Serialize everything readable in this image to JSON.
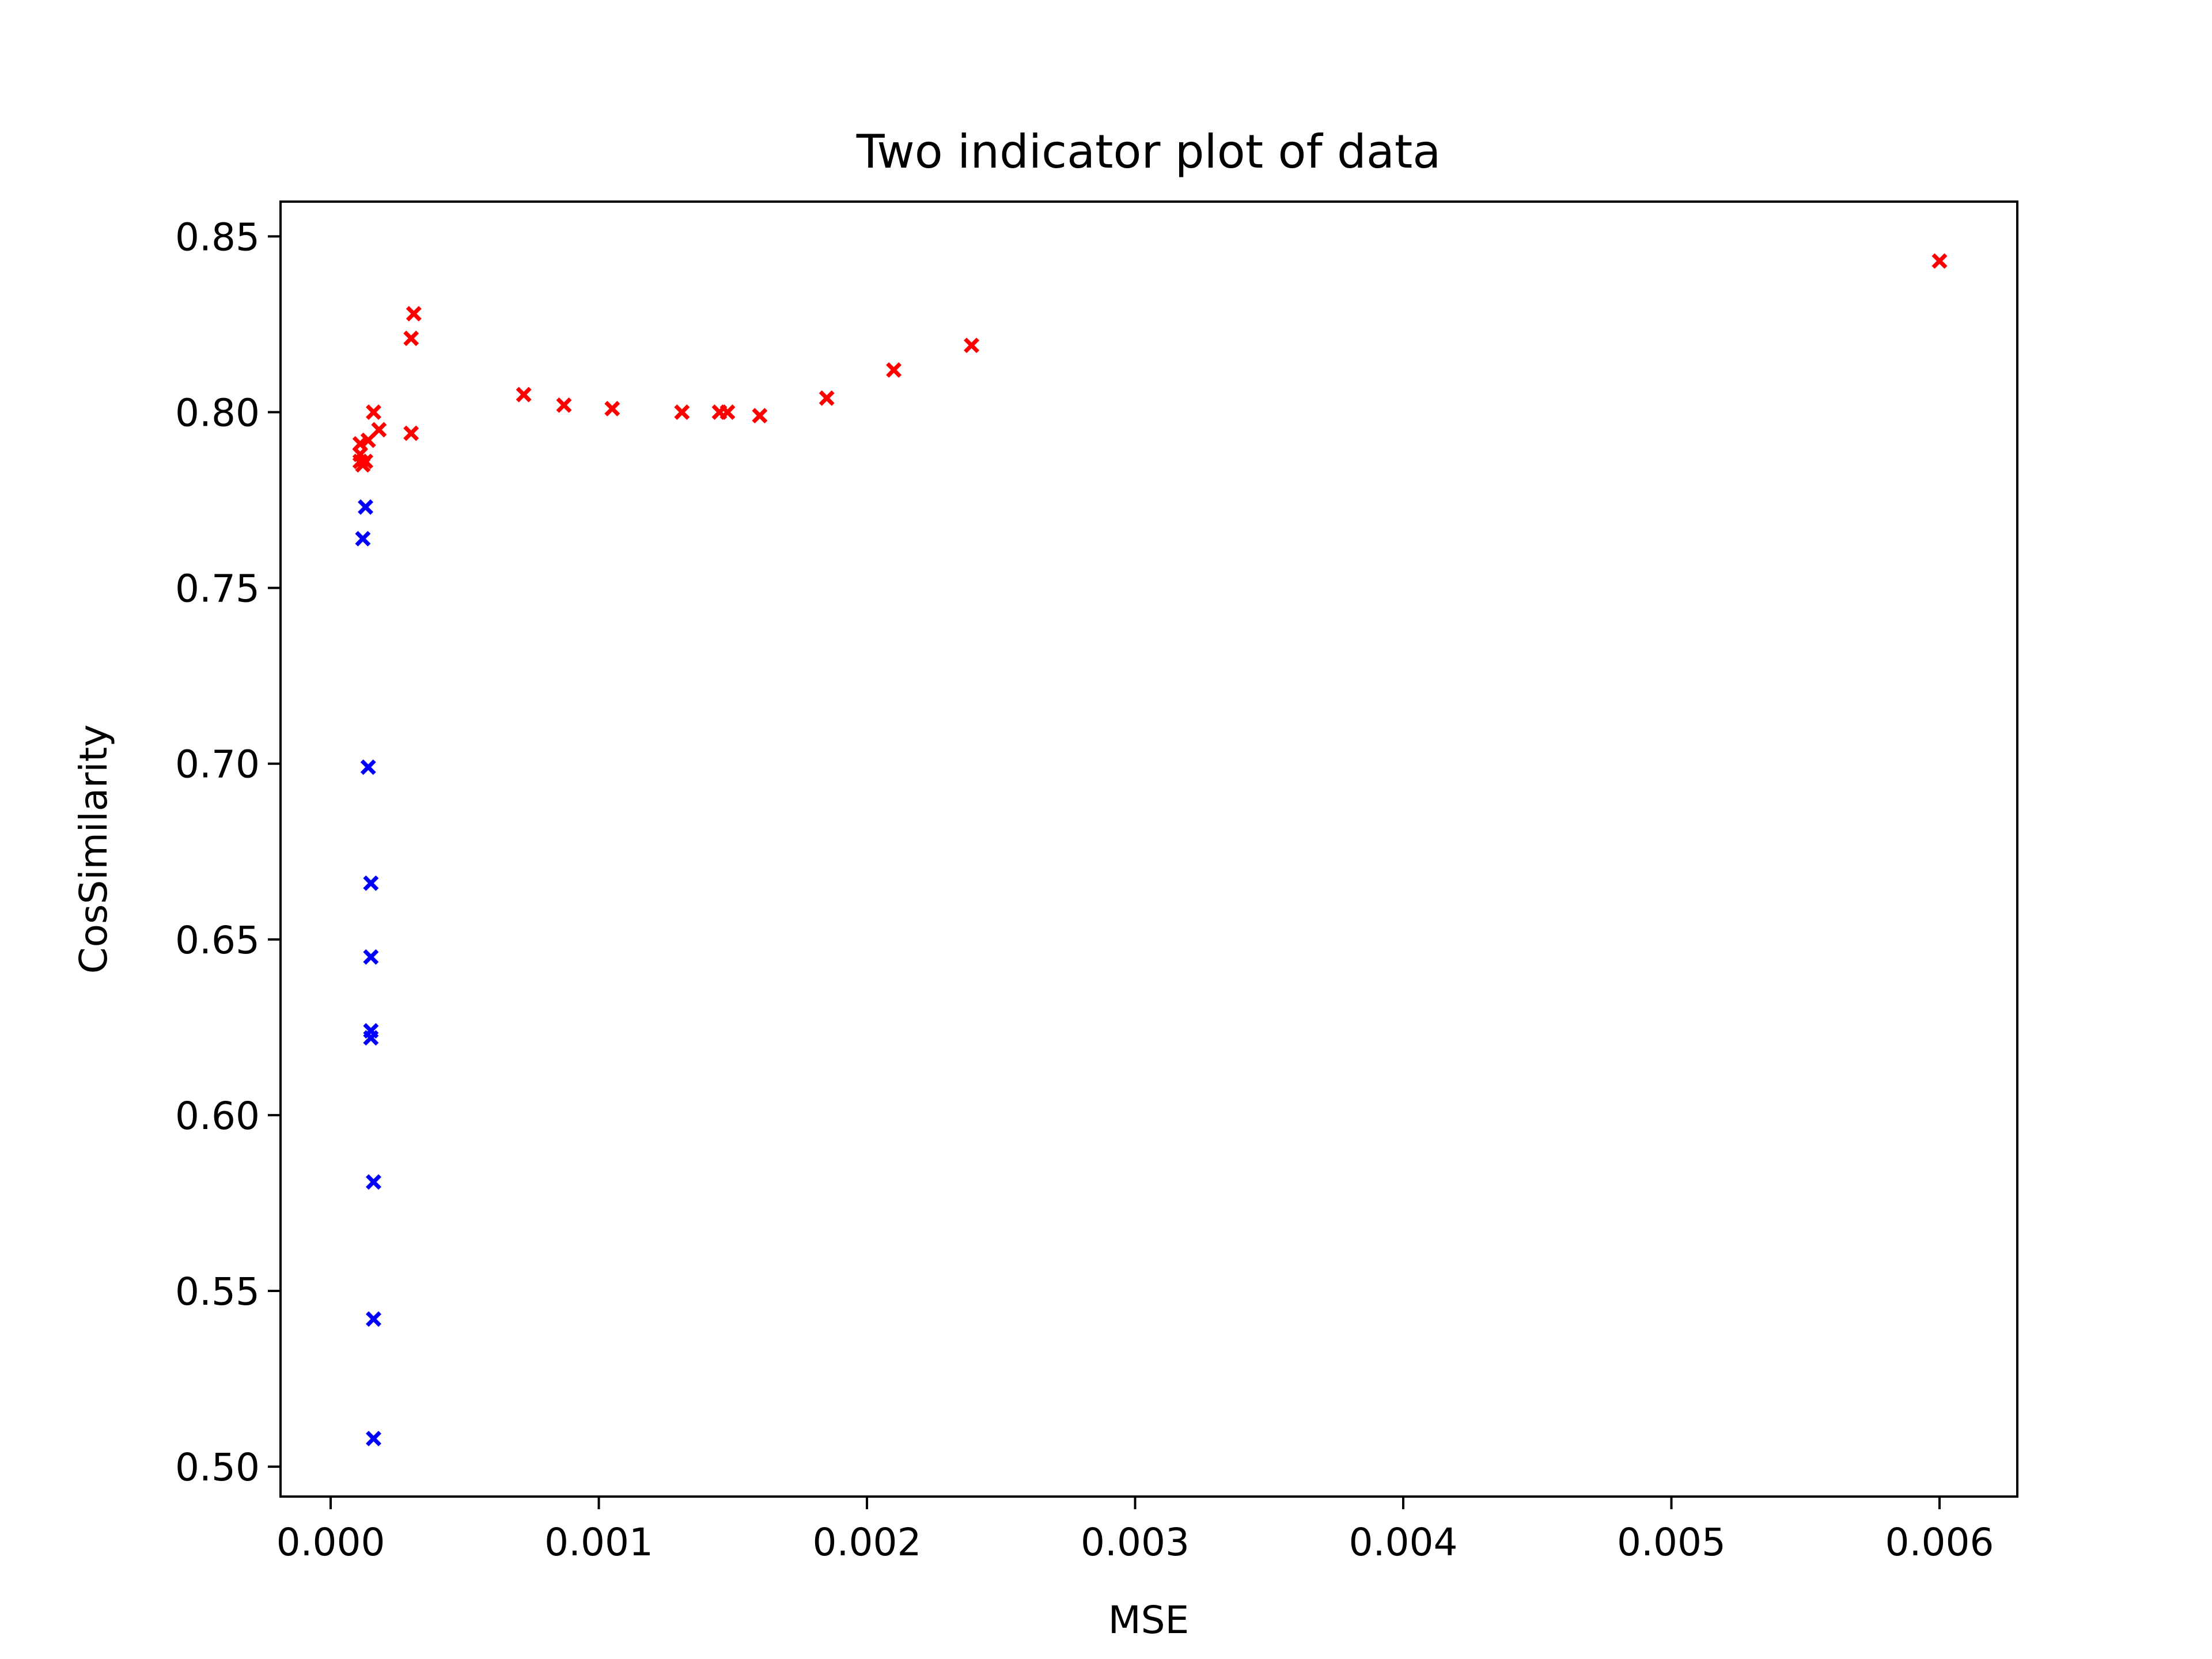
{
  "chart_data": {
    "type": "scatter",
    "title": "Two indicator plot of data",
    "xlabel": "MSE",
    "ylabel": "CosSimilarity",
    "xlim": [
      -0.000187,
      0.00629
    ],
    "ylim": [
      0.4915,
      0.8599
    ],
    "x_ticks": [
      0.0,
      0.001,
      0.002,
      0.003,
      0.004,
      0.005,
      0.006
    ],
    "x_tick_labels": [
      "0.000",
      "0.001",
      "0.002",
      "0.003",
      "0.004",
      "0.005",
      "0.006"
    ],
    "y_ticks": [
      0.5,
      0.55,
      0.6,
      0.65,
      0.7,
      0.75,
      0.8,
      0.85
    ],
    "y_tick_labels": [
      "0.50",
      "0.55",
      "0.60",
      "0.65",
      "0.70",
      "0.75",
      "0.80",
      "0.85"
    ],
    "grid": false,
    "legend": false,
    "marker": "x",
    "series": [
      {
        "color": "#ff0000",
        "points": [
          {
            "x": 0.00011,
            "y": 0.791
          },
          {
            "x": 0.00011,
            "y": 0.788
          },
          {
            "x": 0.00011,
            "y": 0.786
          },
          {
            "x": 0.00012,
            "y": 0.785
          },
          {
            "x": 0.00013,
            "y": 0.786
          },
          {
            "x": 0.00014,
            "y": 0.792
          },
          {
            "x": 0.00016,
            "y": 0.8
          },
          {
            "x": 0.00018,
            "y": 0.795
          },
          {
            "x": 0.0003,
            "y": 0.794
          },
          {
            "x": 0.0003,
            "y": 0.821
          },
          {
            "x": 0.00031,
            "y": 0.828
          },
          {
            "x": 0.00072,
            "y": 0.805
          },
          {
            "x": 0.00087,
            "y": 0.802
          },
          {
            "x": 0.00105,
            "y": 0.801
          },
          {
            "x": 0.00131,
            "y": 0.8
          },
          {
            "x": 0.00145,
            "y": 0.8
          },
          {
            "x": 0.00148,
            "y": 0.8
          },
          {
            "x": 0.0016,
            "y": 0.799
          },
          {
            "x": 0.00185,
            "y": 0.804
          },
          {
            "x": 0.0021,
            "y": 0.812
          },
          {
            "x": 0.00239,
            "y": 0.819
          },
          {
            "x": 0.006,
            "y": 0.843
          }
        ]
      },
      {
        "color": "#0000ff",
        "points": [
          {
            "x": 0.00013,
            "y": 0.773
          },
          {
            "x": 0.00012,
            "y": 0.764
          },
          {
            "x": 0.00014,
            "y": 0.699
          },
          {
            "x": 0.00015,
            "y": 0.666
          },
          {
            "x": 0.00015,
            "y": 0.645
          },
          {
            "x": 0.00015,
            "y": 0.624
          },
          {
            "x": 0.00015,
            "y": 0.622
          },
          {
            "x": 0.00016,
            "y": 0.581
          },
          {
            "x": 0.00016,
            "y": 0.542
          },
          {
            "x": 0.00016,
            "y": 0.508
          }
        ]
      }
    ]
  }
}
